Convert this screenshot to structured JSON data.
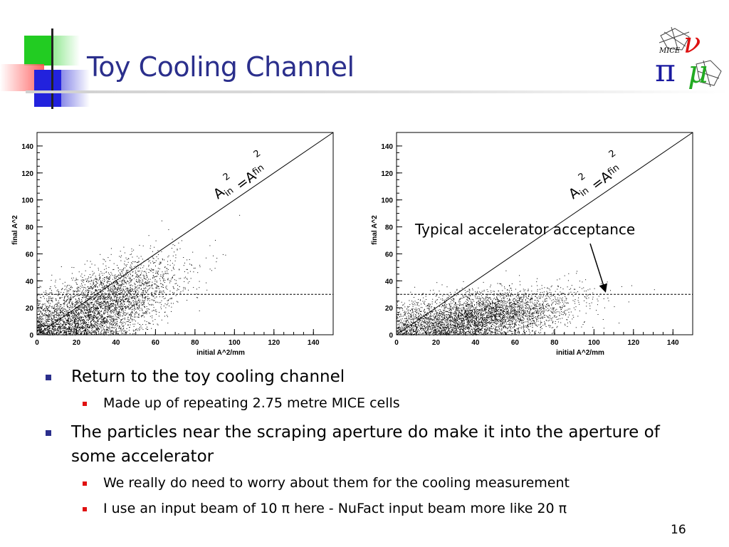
{
  "slide": {
    "title": "Toy Cooling Channel",
    "page_number": "16",
    "logo_text": "MICE"
  },
  "annotations": {
    "equality_label": "A_in^2 = A_fin^2",
    "equality_parts": {
      "a": "A",
      "sub_in": "in",
      "sup_in": "2",
      "eq": "=A",
      "sub_fin": "fin",
      "sup_fin": "2"
    },
    "acceptance_label": "Typical accelerator acceptance"
  },
  "bullets": [
    {
      "text": "Return to the toy cooling channel",
      "children": [
        "Made up of repeating 2.75 metre MICE cells"
      ]
    },
    {
      "text": "The particles near the scraping aperture do make it into the aperture of some accelerator",
      "children": [
        "We really do need to worry about them for the cooling measurement",
        "I use an input beam of 10 π here - NuFact input beam more like 20 π"
      ]
    }
  ],
  "colors": {
    "title": "#2b2f8c",
    "bullet_l1": "#2b2f8c",
    "bullet_l2": "#e01010",
    "deco_green": "#22cc22",
    "deco_blue": "#2222dd",
    "deco_red": "#ff3333"
  },
  "chart_data": [
    {
      "type": "scatter",
      "title": "",
      "xlabel": "initial A^2/mm",
      "ylabel": "final A^2",
      "xlim": [
        0,
        150
      ],
      "ylim": [
        0,
        150
      ],
      "xticks": [
        0,
        20,
        40,
        60,
        80,
        100,
        120,
        140
      ],
      "yticks": [
        0,
        20,
        40,
        60,
        80,
        100,
        120,
        140
      ],
      "reference_lines": [
        {
          "kind": "diagonal",
          "description": "y = x",
          "style": "solid"
        },
        {
          "kind": "horizontal",
          "y": 30,
          "style": "dashed"
        }
      ],
      "distribution": {
        "note": "dense point cloud",
        "x_range": [
          0,
          100
        ],
        "y_range": [
          0,
          90
        ],
        "center": [
          30,
          20
        ]
      }
    },
    {
      "type": "scatter",
      "title": "",
      "xlabel": "initial A^2/mm",
      "ylabel": "final A^2",
      "xlim": [
        0,
        150
      ],
      "ylim": [
        0,
        150
      ],
      "xticks": [
        0,
        20,
        40,
        60,
        80,
        100,
        120,
        140
      ],
      "yticks": [
        0,
        20,
        40,
        60,
        80,
        100,
        120,
        140
      ],
      "reference_lines": [
        {
          "kind": "diagonal",
          "description": "y = x",
          "style": "solid"
        },
        {
          "kind": "horizontal",
          "y": 30,
          "style": "dashed"
        }
      ],
      "distribution": {
        "note": "dense point cloud",
        "x_range": [
          0,
          110
        ],
        "y_range": [
          0,
          60
        ],
        "center": [
          40,
          15
        ]
      }
    }
  ]
}
